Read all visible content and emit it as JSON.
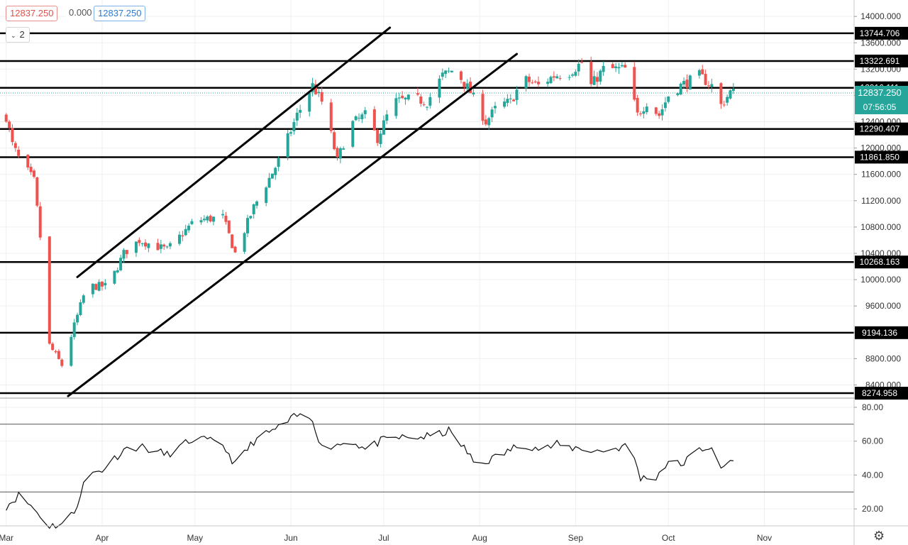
{
  "header": {
    "open_value": "12837.250",
    "change_value": "0.000",
    "close_value": "12837.250",
    "indicator_toggle_count": "2"
  },
  "chart_data": [
    {
      "type": "candlestick",
      "y_ticks": [
        "14000.000",
        "13600.000",
        "13200.000",
        "12800.000",
        "12400.000",
        "12000.000",
        "11600.000",
        "11200.000",
        "10800.000",
        "10400.000",
        "10000.000",
        "9600.000",
        "9200.000",
        "8800.000",
        "8400.000"
      ],
      "ylim": [
        8200,
        14250
      ],
      "x_ticks": [
        {
          "label": "Mar",
          "day": 0
        },
        {
          "label": "Apr",
          "day": 31
        },
        {
          "label": "May",
          "day": 61
        },
        {
          "label": "Jun",
          "day": 92
        },
        {
          "label": "Jul",
          "day": 122
        },
        {
          "label": "Aug",
          "day": 153
        },
        {
          "label": "Sep",
          "day": 184
        },
        {
          "label": "Oct",
          "day": 214
        },
        {
          "label": "Nov",
          "day": 245
        }
      ],
      "xlim": [
        -2,
        274
      ],
      "horizontal_levels": [
        {
          "value": 13744.706,
          "label": "13744.706"
        },
        {
          "value": 13322.691,
          "label": "13322.691"
        },
        {
          "value": 12916.111,
          "label": "12916.111"
        },
        {
          "value": 12290.407,
          "label": "12290.407"
        },
        {
          "value": 11861.85,
          "label": "11861.850"
        },
        {
          "value": 10268.163,
          "label": "10268.163"
        },
        {
          "value": 9194.136,
          "label": "9194.136"
        },
        {
          "value": 8274.958,
          "label": "8274.958"
        }
      ],
      "current_price": {
        "value": 12837.25,
        "label": "12837.250",
        "countdown": "07:56:05"
      },
      "trend_channel": [
        {
          "start": {
            "day": 23,
            "value": 10040
          },
          "end": {
            "day": 124,
            "value": 13830
          }
        },
        {
          "start": {
            "day": 20,
            "value": 8230
          },
          "end": {
            "day": 165,
            "value": 13430
          }
        }
      ],
      "anchors": [
        {
          "day": -1,
          "close": 12700
        },
        {
          "day": 2,
          "close": 12050
        },
        {
          "day": 4,
          "close": 11850
        },
        {
          "day": 9,
          "close": 11500
        },
        {
          "day": 11,
          "close": 10650
        },
        {
          "day": 14,
          "close": 9000
        },
        {
          "day": 18,
          "close": 8700
        },
        {
          "day": 22,
          "close": 9300
        },
        {
          "day": 26,
          "close": 9900
        },
        {
          "day": 33,
          "close": 9900
        },
        {
          "day": 38,
          "close": 10400
        },
        {
          "day": 43,
          "close": 10600
        },
        {
          "day": 52,
          "close": 10450
        },
        {
          "day": 61,
          "close": 10900
        },
        {
          "day": 70,
          "close": 10950
        },
        {
          "day": 74,
          "close": 10400
        },
        {
          "day": 80,
          "close": 11100
        },
        {
          "day": 88,
          "close": 11800
        },
        {
          "day": 94,
          "close": 12500
        },
        {
          "day": 99,
          "close": 12950
        },
        {
          "day": 102,
          "close": 12700
        },
        {
          "day": 105,
          "close": 12200
        },
        {
          "day": 107,
          "close": 11800
        },
        {
          "day": 111,
          "close": 12350
        },
        {
          "day": 116,
          "close": 12500
        },
        {
          "day": 120,
          "close": 12150
        },
        {
          "day": 125,
          "close": 12700
        },
        {
          "day": 132,
          "close": 12750
        },
        {
          "day": 136,
          "close": 12700
        },
        {
          "day": 141,
          "close": 13100
        },
        {
          "day": 145,
          "close": 13200
        },
        {
          "day": 150,
          "close": 12850
        },
        {
          "day": 155,
          "close": 12400
        },
        {
          "day": 159,
          "close": 12650
        },
        {
          "day": 163,
          "close": 12700
        },
        {
          "day": 167,
          "close": 13050
        },
        {
          "day": 172,
          "close": 12950
        },
        {
          "day": 177,
          "close": 13100
        },
        {
          "day": 182,
          "close": 13150
        },
        {
          "day": 186,
          "close": 13300
        },
        {
          "day": 189,
          "close": 12950
        },
        {
          "day": 193,
          "close": 13200
        },
        {
          "day": 200,
          "close": 13200
        },
        {
          "day": 204,
          "close": 12500
        },
        {
          "day": 207,
          "close": 12700
        },
        {
          "day": 211,
          "close": 12500
        },
        {
          "day": 214,
          "close": 12800
        },
        {
          "day": 218,
          "close": 12950
        },
        {
          "day": 224,
          "close": 13100
        },
        {
          "day": 228,
          "close": 12950
        },
        {
          "day": 231,
          "close": 12650
        },
        {
          "day": 234,
          "close": 12850
        },
        {
          "day": 237,
          "close": 12837
        }
      ]
    },
    {
      "type": "line",
      "y_ticks": [
        "80.00",
        "60.00",
        "40.00",
        "20.00"
      ],
      "ylim": [
        10,
        85
      ],
      "bands": [
        70,
        30
      ],
      "anchors": [
        {
          "day": -1,
          "value": 20
        },
        {
          "day": 4,
          "value": 28
        },
        {
          "day": 8,
          "value": 22
        },
        {
          "day": 14,
          "value": 10
        },
        {
          "day": 18,
          "value": 11
        },
        {
          "day": 22,
          "value": 18
        },
        {
          "day": 26,
          "value": 40
        },
        {
          "day": 31,
          "value": 43
        },
        {
          "day": 38,
          "value": 55
        },
        {
          "day": 43,
          "value": 57
        },
        {
          "day": 52,
          "value": 52
        },
        {
          "day": 61,
          "value": 62
        },
        {
          "day": 70,
          "value": 58
        },
        {
          "day": 74,
          "value": 46
        },
        {
          "day": 80,
          "value": 60
        },
        {
          "day": 88,
          "value": 68
        },
        {
          "day": 94,
          "value": 75
        },
        {
          "day": 99,
          "value": 73
        },
        {
          "day": 102,
          "value": 56
        },
        {
          "day": 107,
          "value": 58
        },
        {
          "day": 112,
          "value": 60
        },
        {
          "day": 116,
          "value": 55
        },
        {
          "day": 121,
          "value": 60
        },
        {
          "day": 126,
          "value": 62
        },
        {
          "day": 132,
          "value": 62
        },
        {
          "day": 138,
          "value": 63
        },
        {
          "day": 143,
          "value": 66
        },
        {
          "day": 148,
          "value": 56
        },
        {
          "day": 152,
          "value": 45
        },
        {
          "day": 155,
          "value": 48
        },
        {
          "day": 160,
          "value": 52
        },
        {
          "day": 164,
          "value": 56
        },
        {
          "day": 168,
          "value": 58
        },
        {
          "day": 173,
          "value": 55
        },
        {
          "day": 178,
          "value": 58
        },
        {
          "day": 182,
          "value": 56
        },
        {
          "day": 186,
          "value": 56
        },
        {
          "day": 190,
          "value": 54
        },
        {
          "day": 195,
          "value": 55
        },
        {
          "day": 200,
          "value": 57
        },
        {
          "day": 203,
          "value": 50
        },
        {
          "day": 205,
          "value": 38
        },
        {
          "day": 210,
          "value": 39
        },
        {
          "day": 214,
          "value": 48
        },
        {
          "day": 218,
          "value": 46
        },
        {
          "day": 224,
          "value": 55
        },
        {
          "day": 228,
          "value": 57
        },
        {
          "day": 231,
          "value": 42
        },
        {
          "day": 234,
          "value": 49
        },
        {
          "day": 237,
          "value": 47
        }
      ]
    }
  ],
  "colors": {
    "up": "#26a69a",
    "down": "#ef5350",
    "level_line": "#000000",
    "grid": "#eef0f3",
    "axis_text": "#333333",
    "price_tag": "#26a69a"
  },
  "icons": {
    "settings": "gear-icon",
    "toggle": "chevron-down-icon"
  }
}
